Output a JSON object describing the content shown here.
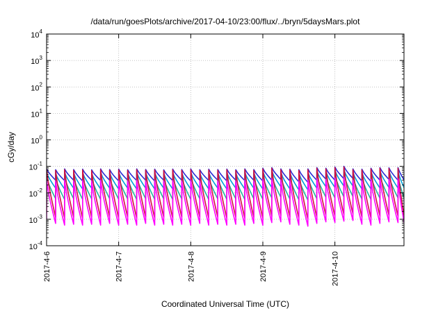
{
  "chart_data": {
    "type": "line",
    "title": "/data/run/goesPlots/archive/2017-04-10/23:00/flux/../bryn/5daysMars.plot",
    "xlabel": "Coordinated Universal Time (UTC)",
    "ylabel": "cGy/day",
    "yscale": "log",
    "ylim": [
      0.0001,
      10000
    ],
    "xlim": [
      "2017-04-06 00:00",
      "2017-04-10 23:00"
    ],
    "x_ticks": [
      "2017-4-6",
      "2017-4-7",
      "2017-4-8",
      "2017-4-9",
      "2017-4-10"
    ],
    "y_ticks": [
      {
        "base": "10",
        "exp": "-4",
        "value": 0.0001
      },
      {
        "base": "10",
        "exp": "-3",
        "value": 0.001
      },
      {
        "base": "10",
        "exp": "-2",
        "value": 0.01
      },
      {
        "base": "10",
        "exp": "-1",
        "value": 0.1
      },
      {
        "base": "10",
        "exp": "0",
        "value": 1
      },
      {
        "base": "10",
        "exp": "1",
        "value": 10
      },
      {
        "base": "10",
        "exp": "2",
        "value": 100
      },
      {
        "base": "10",
        "exp": "3",
        "value": 1000
      },
      {
        "base": "10",
        "exp": "4",
        "value": 10000
      }
    ],
    "grid": true,
    "legend": "none",
    "cycle_hours": 3,
    "series": [
      {
        "color": "#2b2bd6",
        "peak": [
          0.08,
          0.075,
          0.08,
          0.076,
          0.078,
          0.074,
          0.08,
          0.076,
          0.079,
          0.075,
          0.08,
          0.077,
          0.078,
          0.074,
          0.079,
          0.076,
          0.08,
          0.075,
          0.078,
          0.076,
          0.079,
          0.075,
          0.08,
          0.076,
          0.085,
          0.09,
          0.08,
          0.078,
          0.075,
          0.08,
          0.09,
          0.085,
          0.095,
          0.1,
          0.08,
          0.078,
          0.085,
          0.09,
          0.088,
          0.09,
          0.085
        ],
        "trough": [
          0.03,
          0.029,
          0.03,
          0.028,
          0.03,
          0.029,
          0.03,
          0.028,
          0.03,
          0.029,
          0.03,
          0.028,
          0.03,
          0.029,
          0.03,
          0.028,
          0.03,
          0.029,
          0.03,
          0.028,
          0.03,
          0.029,
          0.03,
          0.028,
          0.03,
          0.032,
          0.028,
          0.026,
          0.025,
          0.03,
          0.033,
          0.03,
          0.034,
          0.035,
          0.028,
          0.027,
          0.03,
          0.032,
          0.03,
          0.031,
          0.03
        ]
      },
      {
        "color": "#00a0d8",
        "peak": [
          0.06,
          0.055,
          0.06,
          0.057,
          0.058,
          0.055,
          0.06,
          0.057,
          0.059,
          0.056,
          0.06,
          0.057,
          0.058,
          0.055,
          0.059,
          0.057,
          0.06,
          0.056,
          0.058,
          0.057,
          0.059,
          0.056,
          0.06,
          0.057,
          0.064,
          0.068,
          0.06,
          0.058,
          0.056,
          0.06,
          0.068,
          0.064,
          0.072,
          0.075,
          0.06,
          0.058,
          0.064,
          0.068,
          0.066,
          0.068,
          0.064
        ],
        "trough": [
          0.015,
          0.014,
          0.015,
          0.014,
          0.015,
          0.014,
          0.015,
          0.014,
          0.015,
          0.014,
          0.015,
          0.014,
          0.015,
          0.014,
          0.015,
          0.014,
          0.015,
          0.014,
          0.015,
          0.014,
          0.015,
          0.014,
          0.015,
          0.014,
          0.016,
          0.017,
          0.014,
          0.013,
          0.013,
          0.015,
          0.017,
          0.016,
          0.018,
          0.018,
          0.014,
          0.014,
          0.015,
          0.016,
          0.015,
          0.016,
          0.015
        ]
      },
      {
        "color": "#20b8a0",
        "peak": [
          0.04,
          0.037,
          0.04,
          0.038,
          0.039,
          0.037,
          0.04,
          0.038,
          0.039,
          0.037,
          0.04,
          0.038,
          0.039,
          0.037,
          0.039,
          0.038,
          0.04,
          0.037,
          0.039,
          0.038,
          0.039,
          0.037,
          0.04,
          0.038,
          0.043,
          0.045,
          0.04,
          0.039,
          0.037,
          0.04,
          0.045,
          0.043,
          0.048,
          0.05,
          0.04,
          0.039,
          0.043,
          0.045,
          0.044,
          0.045,
          0.043
        ],
        "trough": [
          0.006,
          0.0056,
          0.006,
          0.0057,
          0.0059,
          0.0056,
          0.006,
          0.0057,
          0.0059,
          0.0056,
          0.006,
          0.0057,
          0.0059,
          0.0056,
          0.0059,
          0.0057,
          0.006,
          0.0056,
          0.0059,
          0.0057,
          0.0059,
          0.0056,
          0.006,
          0.0057,
          0.0064,
          0.0068,
          0.0058,
          0.0055,
          0.0053,
          0.006,
          0.0068,
          0.0064,
          0.007,
          0.0072,
          0.0058,
          0.0056,
          0.0062,
          0.0066,
          0.0064,
          0.0066,
          0.0062
        ]
      },
      {
        "color": "#d01040",
        "peak": [
          0.075,
          0.07,
          0.075,
          0.071,
          0.073,
          0.069,
          0.075,
          0.071,
          0.074,
          0.07,
          0.075,
          0.072,
          0.073,
          0.069,
          0.074,
          0.071,
          0.075,
          0.07,
          0.073,
          0.071,
          0.074,
          0.07,
          0.075,
          0.071,
          0.08,
          0.085,
          0.075,
          0.073,
          0.07,
          0.075,
          0.085,
          0.08,
          0.09,
          0.095,
          0.075,
          0.073,
          0.08,
          0.085,
          0.083,
          0.085,
          0.08
        ],
        "trough": [
          0.0012,
          0.0011,
          0.0012,
          0.0011,
          0.0012,
          0.0011,
          0.0012,
          0.0011,
          0.0012,
          0.0011,
          0.0012,
          0.0011,
          0.0012,
          0.0011,
          0.0012,
          0.0011,
          0.0012,
          0.0011,
          0.0012,
          0.0011,
          0.0012,
          0.0011,
          0.0012,
          0.0011,
          0.0013,
          0.0014,
          0.0012,
          0.0011,
          0.001,
          0.0012,
          0.0014,
          0.0013,
          0.0015,
          0.0016,
          0.0012,
          0.0011,
          0.0013,
          0.0014,
          0.0013,
          0.0014,
          0.0013
        ]
      },
      {
        "color": "#ff00ff",
        "peak": [
          0.03,
          0.028,
          0.03,
          0.028,
          0.029,
          0.028,
          0.03,
          0.028,
          0.029,
          0.028,
          0.03,
          0.028,
          0.029,
          0.028,
          0.029,
          0.028,
          0.03,
          0.028,
          0.029,
          0.028,
          0.029,
          0.028,
          0.03,
          0.028,
          0.032,
          0.034,
          0.03,
          0.029,
          0.028,
          0.03,
          0.034,
          0.032,
          0.036,
          0.038,
          0.03,
          0.029,
          0.032,
          0.034,
          0.033,
          0.034,
          0.032
        ],
        "trough": [
          0.0007,
          0.0006,
          0.00065,
          0.0006,
          0.00065,
          0.0006,
          0.0007,
          0.0006,
          0.00065,
          0.0006,
          0.0007,
          0.0006,
          0.00065,
          0.0006,
          0.00065,
          0.0006,
          0.0007,
          0.0006,
          0.00065,
          0.0006,
          0.00065,
          0.0006,
          0.0007,
          0.0006,
          0.00075,
          0.0008,
          0.00065,
          0.0006,
          0.00055,
          0.0007,
          0.0008,
          0.00075,
          0.00085,
          0.0009,
          0.00065,
          0.0006,
          0.0007,
          0.0008,
          0.00075,
          0.0008,
          0.0007
        ]
      }
    ]
  }
}
